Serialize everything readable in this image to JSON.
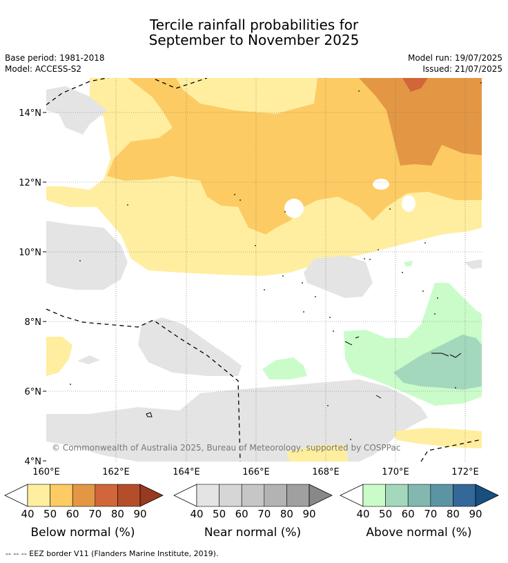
{
  "title": {
    "line1": "Tercile rainfall probabilities for",
    "line2": "September to November 2025"
  },
  "meta": {
    "base_period": "Base period: 1981-2018",
    "model": "Model: ACCESS-S2",
    "model_run": "Model run: 19/07/2025",
    "issued": "Issued: 21/07/2025"
  },
  "map": {
    "lat_labels": [
      "14°N",
      "12°N",
      "10°N",
      "8°N",
      "6°N",
      "4°N"
    ],
    "lon_labels": [
      "160°E",
      "162°E",
      "164°E",
      "166°E",
      "168°E",
      "170°E",
      "172°E"
    ],
    "copyright": "© Commonwealth of Australia 2025, Bureau of Meteorology, supported by COSPPac"
  },
  "colorbars": [
    {
      "name": "below",
      "label": "Below normal (%)",
      "ticks": [
        "40",
        "50",
        "60",
        "70",
        "80",
        "90"
      ],
      "colors": [
        "#ffeea0",
        "#fdcb64",
        "#e39744",
        "#d0663a",
        "#b44e2a",
        "#973a21"
      ]
    },
    {
      "name": "near",
      "label": "Near normal (%)",
      "ticks": [
        "40",
        "50",
        "60",
        "70",
        "80",
        "90"
      ],
      "colors": [
        "#e4e4e4",
        "#d6d6d6",
        "#c6c6c6",
        "#b3b3b3",
        "#a0a0a0",
        "#888888"
      ]
    },
    {
      "name": "above",
      "label": "Above normal (%)",
      "ticks": [
        "40",
        "50",
        "60",
        "70",
        "80",
        "90"
      ],
      "colors": [
        "#cafcca",
        "#a4d8bd",
        "#82b8b0",
        "#5c94a4",
        "#336899",
        "#17507f"
      ]
    }
  ],
  "footer": "--  --  -- EEZ border V11 (Flanders Marine Institute, 2019)."
}
